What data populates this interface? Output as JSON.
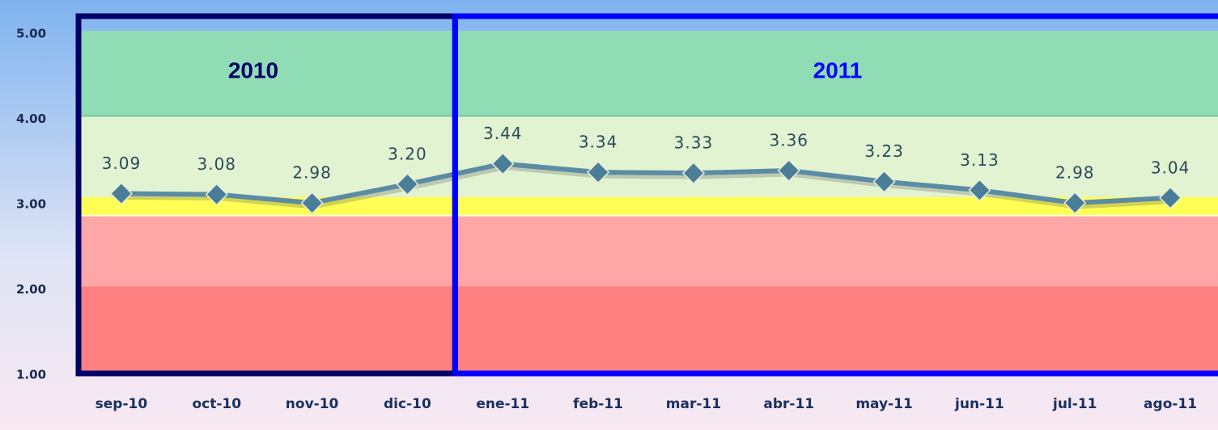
{
  "chart_data": {
    "type": "line",
    "categories": [
      "sep-10",
      "oct-10",
      "nov-10",
      "dic-10",
      "ene-11",
      "feb-11",
      "mar-11",
      "abr-11",
      "may-11",
      "jun-11",
      "jul-11",
      "ago-11"
    ],
    "values": [
      3.09,
      3.08,
      2.98,
      3.2,
      3.44,
      3.34,
      3.33,
      3.36,
      3.23,
      3.13,
      2.98,
      3.04
    ],
    "value_labels": [
      "3.09",
      "3.08",
      "2.98",
      "3.20",
      "3.44",
      "3.34",
      "3.33",
      "3.36",
      "3.23",
      "3.13",
      "2.98",
      "3.04"
    ],
    "color": "#5b8ca3",
    "marker_color": "#4a7d97",
    "ylim": [
      1,
      5
    ],
    "yticks": [
      {
        "value": 1,
        "label": "1.00"
      },
      {
        "value": 2,
        "label": "2.00"
      },
      {
        "value": 3,
        "label": "3.00"
      },
      {
        "value": 4,
        "label": "4.00"
      },
      {
        "value": 5,
        "label": "5.00"
      }
    ],
    "bands": [
      {
        "from": 4,
        "to": 5,
        "color": "#8fdcb5"
      },
      {
        "from": 3.05,
        "to": 4,
        "color": "#e2f3d2"
      },
      {
        "from": 2.83,
        "to": 3.05,
        "color": "#ffff55"
      },
      {
        "from": 2,
        "to": 2.83,
        "color": "#ffa6a6"
      },
      {
        "from": 1,
        "to": 2,
        "color": "#ff8080"
      }
    ],
    "annotations": [
      {
        "text": "2010",
        "color": "#000066"
      },
      {
        "text": "2011",
        "color": "#0000ff"
      }
    ]
  }
}
